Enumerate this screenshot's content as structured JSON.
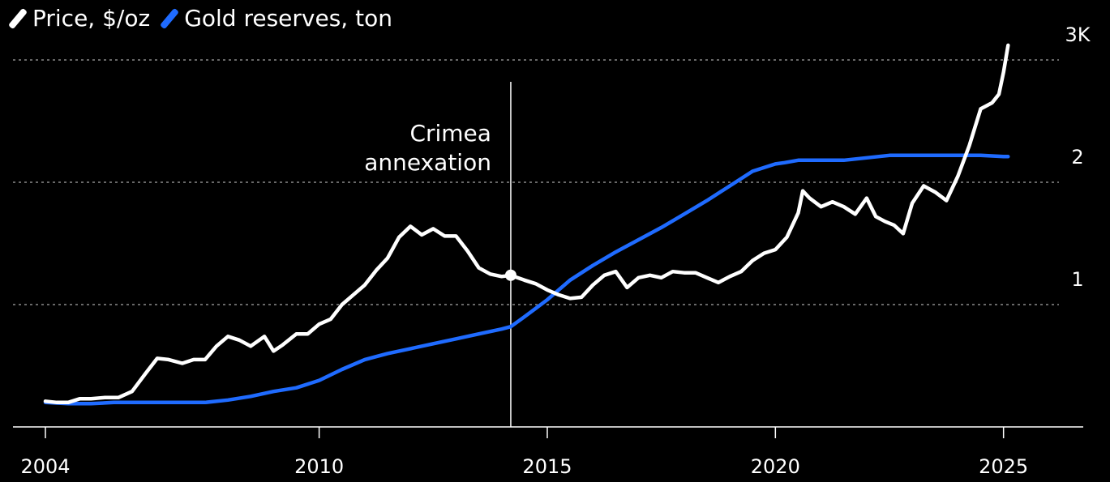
{
  "legend": [
    {
      "label": "Price, $/oz",
      "color": "#ffffff"
    },
    {
      "label": "Gold reserves, ton",
      "color": "#1f6bff"
    }
  ],
  "chart_data": {
    "type": "line",
    "title": "",
    "xlabel": "",
    "ylabel": "",
    "x_ticks": [
      "2004",
      "2010",
      "2015",
      "2020",
      "2025"
    ],
    "y_ticks": [
      "1",
      "2",
      "3K"
    ],
    "ylim": [
      0,
      3.3
    ],
    "xlim": [
      2003.8,
      2026.5
    ],
    "grid": "horizontal dotted",
    "annotation": {
      "x": 2014.2,
      "label_lines": [
        "Crimea",
        "annexation"
      ]
    },
    "series": [
      {
        "name": "Price, $/oz",
        "color": "#ffffff",
        "x": [
          2004.0,
          2004.25,
          2004.5,
          2004.75,
          2005.0,
          2005.3,
          2005.6,
          2005.9,
          2006.2,
          2006.45,
          2006.7,
          2007.0,
          2007.25,
          2007.5,
          2007.75,
          2008.0,
          2008.25,
          2008.5,
          2008.8,
          2009.0,
          2009.2,
          2009.5,
          2009.75,
          2010.0,
          2010.25,
          2010.5,
          2010.75,
          2011.0,
          2011.25,
          2011.5,
          2011.75,
          2012.0,
          2012.25,
          2012.5,
          2012.75,
          2013.0,
          2013.25,
          2013.5,
          2013.75,
          2014.0,
          2014.2,
          2014.5,
          2014.75,
          2015.0,
          2015.25,
          2015.5,
          2015.75,
          2016.0,
          2016.25,
          2016.5,
          2016.75,
          2017.0,
          2017.25,
          2017.5,
          2017.75,
          2018.0,
          2018.25,
          2018.5,
          2018.75,
          2019.0,
          2019.25,
          2019.5,
          2019.75,
          2020.0,
          2020.25,
          2020.5,
          2020.6,
          2020.75,
          2021.0,
          2021.25,
          2021.5,
          2021.75,
          2022.0,
          2022.2,
          2022.4,
          2022.6,
          2022.8,
          2023.0,
          2023.25,
          2023.5,
          2023.75,
          2024.0,
          2024.25,
          2024.5,
          2024.75,
          2024.9,
          2025.0,
          2025.1
        ],
        "y": [
          0.21,
          0.2,
          0.2,
          0.23,
          0.23,
          0.24,
          0.24,
          0.29,
          0.44,
          0.56,
          0.55,
          0.52,
          0.55,
          0.55,
          0.66,
          0.74,
          0.71,
          0.66,
          0.74,
          0.62,
          0.67,
          0.76,
          0.76,
          0.84,
          0.88,
          1.0,
          1.08,
          1.16,
          1.28,
          1.38,
          1.55,
          1.64,
          1.57,
          1.62,
          1.56,
          1.56,
          1.44,
          1.3,
          1.25,
          1.23,
          1.24,
          1.2,
          1.17,
          1.12,
          1.08,
          1.05,
          1.06,
          1.16,
          1.24,
          1.27,
          1.14,
          1.22,
          1.24,
          1.22,
          1.27,
          1.26,
          1.26,
          1.22,
          1.18,
          1.23,
          1.27,
          1.36,
          1.42,
          1.45,
          1.55,
          1.75,
          1.93,
          1.87,
          1.8,
          1.84,
          1.8,
          1.74,
          1.87,
          1.72,
          1.68,
          1.65,
          1.58,
          1.83,
          1.97,
          1.92,
          1.85,
          2.05,
          2.3,
          2.6,
          2.65,
          2.72,
          2.9,
          3.12
        ]
      },
      {
        "name": "Gold reserves, ton",
        "color": "#1f6bff",
        "x": [
          2004.0,
          2004.5,
          2005.0,
          2005.5,
          2006.0,
          2006.5,
          2007.0,
          2007.5,
          2008.0,
          2008.5,
          2009.0,
          2009.5,
          2010.0,
          2010.5,
          2011.0,
          2011.5,
          2012.0,
          2012.5,
          2013.0,
          2013.5,
          2014.0,
          2014.2,
          2014.5,
          2015.0,
          2015.5,
          2016.0,
          2016.5,
          2017.0,
          2017.5,
          2018.0,
          2018.5,
          2019.0,
          2019.5,
          2020.0,
          2020.2,
          2020.5,
          2021.0,
          2021.5,
          2022.0,
          2022.5,
          2023.0,
          2023.5,
          2024.0,
          2024.5,
          2025.0,
          2025.1
        ],
        "y": [
          0.2,
          0.19,
          0.19,
          0.2,
          0.2,
          0.2,
          0.2,
          0.2,
          0.22,
          0.25,
          0.29,
          0.32,
          0.38,
          0.47,
          0.55,
          0.6,
          0.64,
          0.68,
          0.72,
          0.76,
          0.8,
          0.82,
          0.9,
          1.04,
          1.2,
          1.32,
          1.43,
          1.53,
          1.63,
          1.74,
          1.85,
          1.97,
          2.09,
          2.15,
          2.16,
          2.18,
          2.18,
          2.18,
          2.2,
          2.22,
          2.22,
          2.22,
          2.22,
          2.22,
          2.21,
          2.21
        ]
      }
    ]
  }
}
